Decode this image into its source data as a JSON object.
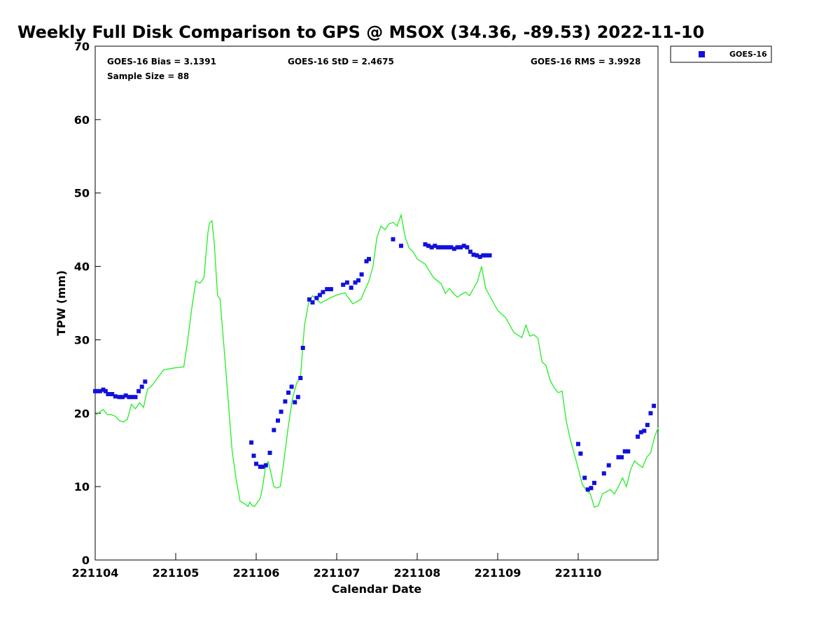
{
  "chart_data": {
    "type": "scatter",
    "title": "Weekly Full Disk Comparison to GPS @ MSOX (34.36, -89.53) 2022-11-10",
    "xlabel": "Calendar Date",
    "ylabel": "TPW (mm)",
    "xlim": [
      "2022-11-04",
      "2022-11-11"
    ],
    "ylim": [
      0,
      70
    ],
    "x_ticks": [
      "221104",
      "221105",
      "221106",
      "221107",
      "221108",
      "221109",
      "221110"
    ],
    "y_ticks": [
      0,
      10,
      20,
      30,
      40,
      50,
      60,
      70
    ],
    "grid": false,
    "legend": {
      "placement": "top-right outside",
      "entries": [
        "GOES-16"
      ]
    },
    "stats": {
      "bias": "GOES-16 Bias = 3.1391",
      "std": "GOES-16 StD = 2.4675",
      "rms": "GOES-16 RMS = 3.9928",
      "sample": "Sample Size = 88"
    },
    "colors": {
      "goes16": "#1111dd",
      "gps": "#22ee22"
    },
    "series": [
      {
        "name": "GOES-16",
        "kind": "scatter",
        "x": [
          4.0,
          4.03,
          4.06,
          4.1,
          4.13,
          4.16,
          4.21,
          4.25,
          4.3,
          4.34,
          4.38,
          4.42,
          4.46,
          4.5,
          4.54,
          4.58,
          4.62,
          5.94,
          5.97,
          6.0,
          6.05,
          6.08,
          6.12,
          6.17,
          6.22,
          6.27,
          6.31,
          6.36,
          6.4,
          6.44,
          6.48,
          6.52,
          6.55,
          6.58,
          6.66,
          6.7,
          6.75,
          6.79,
          6.83,
          6.88,
          6.93,
          7.08,
          7.13,
          7.18,
          7.23,
          7.27,
          7.31,
          7.37,
          7.4,
          7.7,
          7.8,
          8.1,
          8.14,
          8.18,
          8.22,
          8.26,
          8.3,
          8.34,
          8.38,
          8.42,
          8.46,
          8.5,
          8.54,
          8.58,
          8.62,
          8.66,
          8.7,
          8.74,
          8.78,
          8.82,
          8.86,
          8.9,
          10.0,
          10.03,
          10.08,
          10.12,
          10.16,
          10.2,
          10.32,
          10.38,
          10.5,
          10.54,
          10.58,
          10.62,
          10.74,
          10.78,
          10.82,
          10.86,
          10.9,
          10.94
        ],
        "y": [
          23.0,
          23.0,
          23.0,
          23.2,
          23.0,
          22.6,
          22.6,
          22.3,
          22.2,
          22.2,
          22.4,
          22.2,
          22.2,
          22.2,
          23.0,
          23.6,
          24.3,
          16.0,
          14.2,
          13.1,
          12.7,
          12.7,
          12.9,
          14.6,
          17.7,
          19.0,
          20.2,
          21.6,
          22.8,
          23.6,
          21.5,
          22.2,
          24.8,
          28.9,
          35.5,
          35.1,
          35.7,
          36.1,
          36.5,
          36.9,
          36.9,
          37.5,
          37.8,
          37.1,
          37.8,
          38.1,
          38.9,
          40.7,
          41.0,
          43.7,
          42.8,
          43.0,
          42.8,
          42.6,
          42.8,
          42.6,
          42.6,
          42.6,
          42.6,
          42.6,
          42.4,
          42.6,
          42.6,
          42.8,
          42.6,
          42.0,
          41.6,
          41.5,
          41.3,
          41.5,
          41.5,
          41.5,
          15.8,
          14.5,
          11.2,
          9.6,
          9.8,
          10.5,
          11.8,
          12.9,
          14.0,
          14.0,
          14.8,
          14.8,
          16.8,
          17.4,
          17.6,
          18.4,
          20.0,
          21.0
        ]
      },
      {
        "name": "",
        "kind": "line",
        "x": [
          4.0,
          4.05,
          4.1,
          4.15,
          4.2,
          4.25,
          4.3,
          4.35,
          4.4,
          4.45,
          4.5,
          4.55,
          4.6,
          4.65,
          4.7,
          4.85,
          5.0,
          5.1,
          5.15,
          5.2,
          5.25,
          5.3,
          5.35,
          5.4,
          5.42,
          5.45,
          5.48,
          5.52,
          5.55,
          5.6,
          5.65,
          5.7,
          5.75,
          5.8,
          5.85,
          5.9,
          5.92,
          5.95,
          5.98,
          6.0,
          6.05,
          6.08,
          6.12,
          6.15,
          6.18,
          6.22,
          6.25,
          6.3,
          6.35,
          6.4,
          6.45,
          6.5,
          6.55,
          6.6,
          6.65,
          6.7,
          6.8,
          6.9,
          7.0,
          7.1,
          7.2,
          7.3,
          7.4,
          7.45,
          7.5,
          7.55,
          7.6,
          7.65,
          7.7,
          7.75,
          7.8,
          7.85,
          7.9,
          7.95,
          8.0,
          8.1,
          8.2,
          8.3,
          8.35,
          8.4,
          8.45,
          8.5,
          8.55,
          8.6,
          8.65,
          8.7,
          8.75,
          8.8,
          8.85,
          8.9,
          9.0,
          9.1,
          9.2,
          9.3,
          9.35,
          9.4,
          9.45,
          9.5,
          9.55,
          9.6,
          9.65,
          9.7,
          9.75,
          9.8,
          9.85,
          9.9,
          10.0,
          10.05,
          10.1,
          10.15,
          10.2,
          10.25,
          10.3,
          10.35,
          10.4,
          10.45,
          10.5,
          10.55,
          10.6,
          10.65,
          10.7,
          10.75,
          10.8,
          10.85,
          10.9,
          10.95,
          11.0
        ],
        "y": [
          19.7,
          20.1,
          20.5,
          19.8,
          19.8,
          19.6,
          19.0,
          18.8,
          19.2,
          21.2,
          20.6,
          21.4,
          20.8,
          23.3,
          23.7,
          25.9,
          26.2,
          26.3,
          30.0,
          34.3,
          38.0,
          37.7,
          38.4,
          44.6,
          45.9,
          46.2,
          43.0,
          36.0,
          35.6,
          29.0,
          22.0,
          15.0,
          11.0,
          8.0,
          7.7,
          7.3,
          7.9,
          7.4,
          7.3,
          7.6,
          8.4,
          10.0,
          13.0,
          13.4,
          12.0,
          10.0,
          9.8,
          10.0,
          14.0,
          18.3,
          22.0,
          24.0,
          25.0,
          32.0,
          35.0,
          36.0,
          35.0,
          35.6,
          36.1,
          36.4,
          34.9,
          35.5,
          38.0,
          40.0,
          44.0,
          45.5,
          45.0,
          45.8,
          46.0,
          45.5,
          47.0,
          44.0,
          42.5,
          42.0,
          41.0,
          40.3,
          38.5,
          37.6,
          36.3,
          37.0,
          36.3,
          35.8,
          36.2,
          36.5,
          36.0,
          37.0,
          38.0,
          40.0,
          37.0,
          36.0,
          34.0,
          33.0,
          31.0,
          30.3,
          32.0,
          30.5,
          30.7,
          30.2,
          27.0,
          26.5,
          24.5,
          23.5,
          22.8,
          23.0,
          19.0,
          16.5,
          12.5,
          10.3,
          9.5,
          9.0,
          7.2,
          7.4,
          9.0,
          9.3,
          9.6,
          9.0,
          10.0,
          11.2,
          10.0,
          12.3,
          13.5,
          13.0,
          12.6,
          14.0,
          14.6,
          16.8,
          18.2
        ]
      }
    ]
  }
}
